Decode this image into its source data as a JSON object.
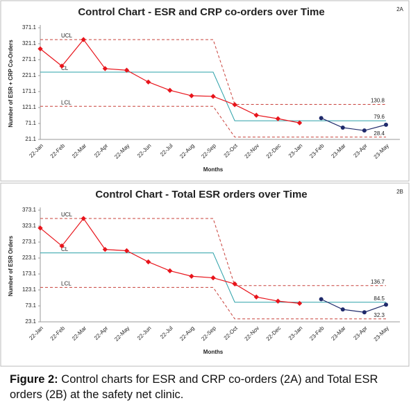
{
  "chart_data": [
    {
      "type": "line",
      "panel": "2A",
      "title": "Control Chart - ESR and CRP co-orders over Time",
      "x_label": "Months",
      "y_label": "Number of ESR + CRP Co-Orders",
      "categories": [
        "22-Jan",
        "22-Feb",
        "22-Mar",
        "22-Apr",
        "22-May",
        "22-Jun",
        "22-Jul",
        "22-Aug",
        "22-Sep",
        "22-Oct",
        "22-Nov",
        "22-Dec",
        "23-Jan",
        "23-Feb",
        "23-Mar",
        "23-Apr",
        "23-May"
      ],
      "ylim": [
        21.1,
        371.1
      ],
      "yticks": [
        21.1,
        71.1,
        121.1,
        171.1,
        221.1,
        271.1,
        321.1,
        371.1
      ],
      "series": [
        {
          "name": "UCL",
          "color": "#c8403a",
          "dash": true,
          "values": [
            334,
            334,
            334,
            334,
            334,
            334,
            334,
            334,
            334,
            130.8,
            130.8,
            130.8,
            130.8,
            130.8,
            130.8,
            130.8,
            130.8
          ]
        },
        {
          "name": "CL",
          "color": "#2aa0a8",
          "dash": false,
          "values": [
            232,
            232,
            232,
            232,
            232,
            232,
            232,
            232,
            232,
            79.6,
            79.6,
            79.6,
            79.6,
            79.6,
            79.6,
            79.6,
            79.6
          ]
        },
        {
          "name": "LCL",
          "color": "#c8403a",
          "dash": true,
          "values": [
            125,
            125,
            125,
            125,
            125,
            125,
            125,
            125,
            125,
            28.4,
            28.4,
            28.4,
            28.4,
            28.4,
            28.4,
            28.4,
            28.4
          ]
        },
        {
          "color": "#e8141b",
          "marker": "diamond",
          "values": [
            305,
            251,
            334,
            243,
            238,
            201,
            175,
            158,
            156,
            130,
            97,
            86,
            73,
            null,
            null,
            null,
            null
          ]
        },
        {
          "color": "#1f2a6b",
          "marker": "circle",
          "values": [
            null,
            null,
            null,
            null,
            null,
            null,
            null,
            null,
            null,
            null,
            null,
            null,
            null,
            88,
            58,
            49,
            67
          ]
        }
      ]
    },
    {
      "type": "line",
      "panel": "2B",
      "title": "Control Chart - Total ESR orders over Time",
      "x_label": "Months",
      "y_label": "Number of ESR Orders",
      "categories": [
        "22-Jan",
        "22-Feb",
        "22-Mar",
        "22-Apr",
        "22-May",
        "22-Jun",
        "22-Jul",
        "22-Aug",
        "22-Sep",
        "22-Oct",
        "22-Nov",
        "22-Dec",
        "23-Jan",
        "23-Feb",
        "23-Mar",
        "23-Apr",
        "23-May"
      ],
      "ylim": [
        23.1,
        373.1
      ],
      "yticks": [
        23.1,
        73.1,
        123.1,
        173.1,
        223.1,
        273.1,
        323.1,
        373.1
      ],
      "series": [
        {
          "name": "UCL",
          "color": "#c8403a",
          "dash": true,
          "values": [
            347,
            347,
            347,
            347,
            347,
            347,
            347,
            347,
            347,
            136.7,
            136.7,
            136.7,
            136.7,
            136.7,
            136.7,
            136.7,
            136.7
          ]
        },
        {
          "name": "CL",
          "color": "#2aa0a8",
          "dash": false,
          "values": [
            239,
            239,
            239,
            239,
            239,
            239,
            239,
            239,
            239,
            84.5,
            84.5,
            84.5,
            84.5,
            84.5,
            84.5,
            84.5,
            84.5
          ]
        },
        {
          "name": "LCL",
          "color": "#c8403a",
          "dash": true,
          "values": [
            131,
            131,
            131,
            131,
            131,
            131,
            131,
            131,
            131,
            32.3,
            32.3,
            32.3,
            32.3,
            32.3,
            32.3,
            32.3,
            32.3
          ]
        },
        {
          "color": "#e8141b",
          "marker": "diamond",
          "values": [
            317,
            261,
            347,
            250,
            246,
            211,
            183,
            166,
            161,
            142,
            101,
            88,
            81,
            null,
            null,
            null,
            null
          ]
        },
        {
          "color": "#1f2a6b",
          "marker": "circle",
          "values": [
            null,
            null,
            null,
            null,
            null,
            null,
            null,
            null,
            null,
            null,
            null,
            null,
            null,
            94,
            62,
            53,
            77
          ]
        }
      ]
    }
  ],
  "caption": {
    "label": "Figure 2:",
    "text": "Control charts for ESR and CRP co-orders (2A) and Total ESR orders (2B) at the safety net clinic."
  }
}
